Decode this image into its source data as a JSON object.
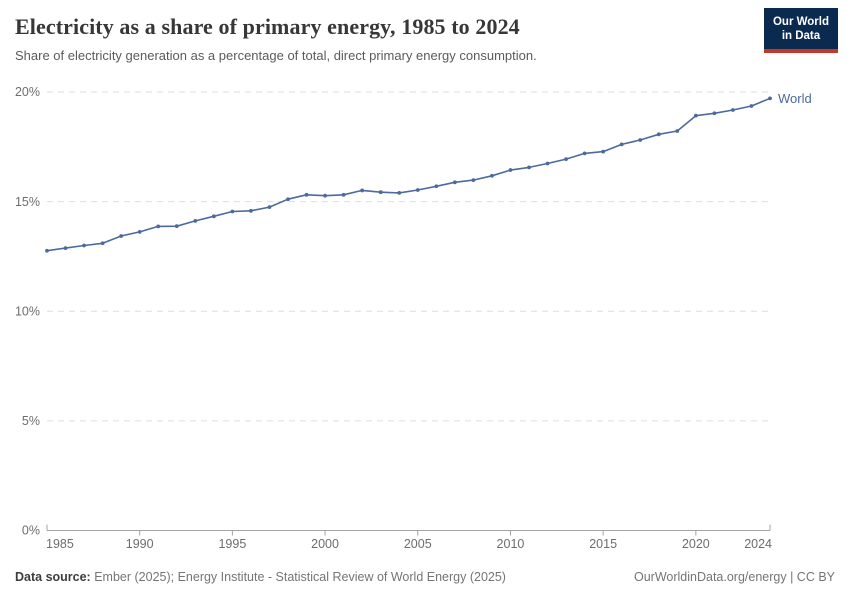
{
  "header": {
    "title": "Electricity as a share of primary energy, 1985 to 2024",
    "subtitle": "Share of electricity generation as a percentage of total, direct primary energy consumption.",
    "logo": {
      "line1": "Our World",
      "line2": "in Data",
      "bg_color": "#0b2a50",
      "bar_color": "#c0392b"
    }
  },
  "chart_data": {
    "type": "line",
    "title": "Electricity as a share of primary energy, 1985 to 2024",
    "subtitle": "Share of electricity generation as a percentage of total, direct primary energy consumption.",
    "x": [
      1985,
      1986,
      1987,
      1988,
      1989,
      1990,
      1991,
      1992,
      1993,
      1994,
      1995,
      1996,
      1997,
      1998,
      1999,
      2000,
      2001,
      2002,
      2003,
      2004,
      2005,
      2006,
      2007,
      2008,
      2009,
      2010,
      2011,
      2012,
      2013,
      2014,
      2015,
      2016,
      2017,
      2018,
      2019,
      2020,
      2021,
      2022,
      2023,
      2024
    ],
    "series": [
      {
        "name": "World",
        "color": "#4C6A9C",
        "values": [
          12.76,
          12.88,
          13.0,
          13.1,
          13.43,
          13.62,
          13.87,
          13.88,
          14.12,
          14.33,
          14.55,
          14.58,
          14.75,
          15.11,
          15.31,
          15.27,
          15.31,
          15.51,
          15.43,
          15.4,
          15.53,
          15.7,
          15.88,
          15.98,
          16.18,
          16.44,
          16.56,
          16.74,
          16.94,
          17.2,
          17.28,
          17.61,
          17.81,
          18.07,
          18.22,
          18.92,
          19.03,
          19.18,
          19.36,
          19.71
        ]
      }
    ],
    "xlabel": "",
    "ylabel": "",
    "ylim": [
      0,
      20
    ],
    "yticks": [
      0,
      5,
      10,
      15,
      20
    ],
    "y_tick_suffix": "%",
    "xticks": [
      1985,
      1990,
      1995,
      2000,
      2005,
      2010,
      2015,
      2020,
      2024
    ],
    "grid": "horizontal-dashed",
    "legend": "end-of-line-label"
  },
  "footer": {
    "source_label": "Data source:",
    "source_text": " Ember (2025); Energy Institute - Statistical Review of World Energy (2025)",
    "link_text": "OurWorldinData.org/energy | CC BY"
  }
}
